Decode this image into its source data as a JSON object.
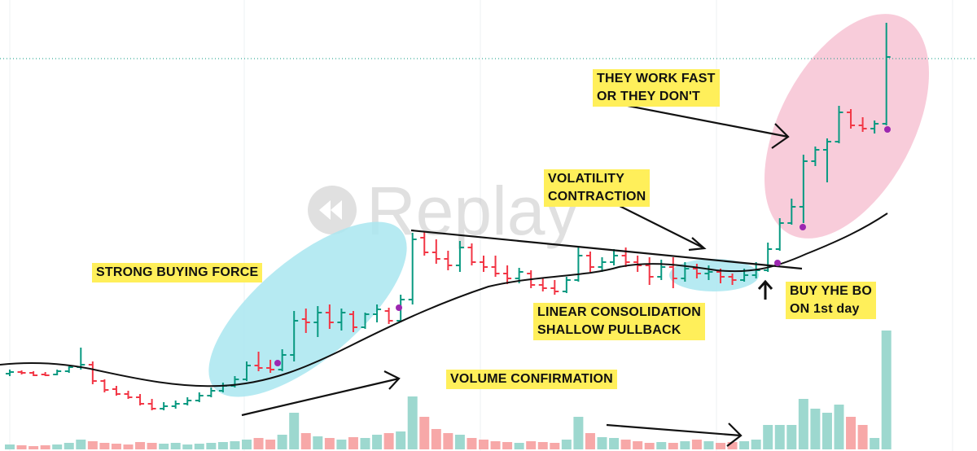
{
  "chart_data": {
    "type": "ohlc",
    "watermark": "Replay",
    "ylim": [
      0,
      554
    ],
    "y2lim": [
      0,
      554
    ],
    "up_color": "#089981",
    "down_color": "#f23645",
    "volume_up_color": "#9dd8cf",
    "volume_down_color": "#f7a8a8",
    "price_line": 482,
    "price_line_color": "#089981",
    "ohlc": [
      [
        95,
        100,
        92,
        97
      ],
      [
        97,
        99,
        94,
        96
      ],
      [
        96,
        98,
        92,
        93
      ],
      [
        94,
        97,
        92,
        93
      ],
      [
        94,
        100,
        93,
        98
      ],
      [
        98,
        104,
        96,
        103
      ],
      [
        103,
        127,
        100,
        106
      ],
      [
        106,
        110,
        82,
        86
      ],
      [
        86,
        88,
        72,
        75
      ],
      [
        76,
        80,
        68,
        70
      ],
      [
        70,
        74,
        64,
        66
      ],
      [
        66,
        70,
        56,
        58
      ],
      [
        58,
        64,
        50,
        52
      ],
      [
        52,
        60,
        50,
        55
      ],
      [
        55,
        62,
        52,
        58
      ],
      [
        58,
        66,
        56,
        62
      ],
      [
        62,
        72,
        60,
        68
      ],
      [
        68,
        78,
        66,
        74
      ],
      [
        74,
        84,
        72,
        80
      ],
      [
        80,
        92,
        78,
        88
      ],
      [
        88,
        110,
        86,
        105
      ],
      [
        105,
        122,
        98,
        102
      ],
      [
        102,
        112,
        96,
        100
      ],
      [
        100,
        125,
        98,
        118
      ],
      [
        118,
        172,
        110,
        160
      ],
      [
        162,
        175,
        145,
        158
      ],
      [
        158,
        178,
        140,
        170
      ],
      [
        170,
        180,
        150,
        158
      ],
      [
        158,
        175,
        148,
        170
      ],
      [
        168,
        172,
        146,
        152
      ],
      [
        152,
        170,
        150,
        168
      ],
      [
        168,
        180,
        158,
        174
      ],
      [
        172,
        176,
        156,
        160
      ],
      [
        160,
        192,
        158,
        186
      ],
      [
        186,
        268,
        180,
        260
      ],
      [
        262,
        270,
        240,
        244
      ],
      [
        244,
        260,
        230,
        236
      ],
      [
        236,
        246,
        222,
        228
      ],
      [
        228,
        258,
        220,
        250
      ],
      [
        250,
        255,
        228,
        232
      ],
      [
        232,
        240,
        220,
        226
      ],
      [
        226,
        240,
        214,
        218
      ],
      [
        218,
        228,
        205,
        212
      ],
      [
        212,
        225,
        206,
        220
      ],
      [
        218,
        222,
        200,
        204
      ],
      [
        204,
        212,
        196,
        200
      ],
      [
        200,
        210,
        192,
        196
      ],
      [
        196,
        214,
        194,
        210
      ],
      [
        210,
        250,
        208,
        240
      ],
      [
        240,
        245,
        220,
        226
      ],
      [
        226,
        238,
        220,
        232
      ],
      [
        232,
        248,
        228,
        240
      ],
      [
        240,
        250,
        226,
        232
      ],
      [
        232,
        240,
        220,
        228
      ],
      [
        228,
        238,
        204,
        214
      ],
      [
        214,
        235,
        210,
        226
      ],
      [
        226,
        238,
        200,
        212
      ],
      [
        212,
        232,
        208,
        224
      ],
      [
        224,
        230,
        212,
        218
      ],
      [
        218,
        228,
        210,
        220
      ],
      [
        220,
        224,
        206,
        214
      ],
      [
        214,
        218,
        204,
        210
      ],
      [
        210,
        224,
        208,
        216
      ],
      [
        216,
        232,
        212,
        222
      ],
      [
        222,
        256,
        220,
        248
      ],
      [
        248,
        286,
        246,
        280
      ],
      [
        280,
        310,
        278,
        300
      ],
      [
        300,
        364,
        280,
        356
      ],
      [
        356,
        374,
        350,
        370
      ],
      [
        370,
        384,
        330,
        380
      ],
      [
        380,
        424,
        378,
        416
      ],
      [
        416,
        420,
        396,
        400
      ],
      [
        400,
        410,
        392,
        396
      ],
      [
        396,
        406,
        390,
        402
      ],
      [
        402,
        526,
        400,
        484
      ]
    ],
    "volume": [
      6,
      5,
      4,
      5,
      6,
      8,
      12,
      10,
      8,
      7,
      6,
      9,
      8,
      7,
      8,
      6,
      7,
      8,
      9,
      10,
      12,
      14,
      12,
      18,
      45,
      20,
      16,
      14,
      12,
      15,
      14,
      18,
      20,
      22,
      65,
      40,
      25,
      20,
      18,
      14,
      12,
      10,
      9,
      8,
      10,
      9,
      8,
      12,
      40,
      20,
      15,
      14,
      12,
      10,
      8,
      9,
      8,
      10,
      12,
      10,
      8,
      9,
      10,
      12,
      30,
      30,
      30,
      62,
      50,
      45,
      55,
      40,
      30,
      14,
      146
    ],
    "annotations": [
      [
        "STRONG BUYING FORCE"
      ],
      [
        "THEY WORK FAST",
        "OR THEY DON'T"
      ],
      [
        "VOLATILITY",
        "CONTRACTION"
      ],
      [
        "LINEAR CONSOLIDATION",
        "SHALLOW PULLBACK"
      ],
      [
        "BUY YHE BO",
        "ON 1st day"
      ],
      [
        "VOLUME CONFIRMATION"
      ]
    ]
  }
}
